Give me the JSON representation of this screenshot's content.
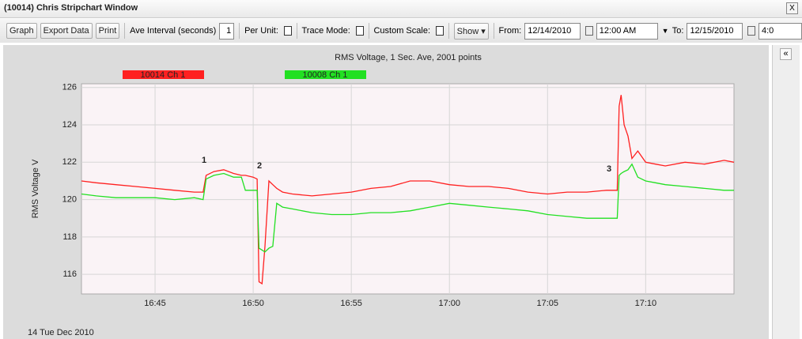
{
  "window": {
    "title": "(10014) Chris Stripchart Window",
    "close": "X"
  },
  "toolbar": {
    "buttons": [
      "Graph",
      "Export Data",
      "Print"
    ],
    "ave_interval_label": "Ave Interval (seconds)",
    "ave_interval_value": "1",
    "per_unit_label": "Per Unit:",
    "trace_mode_label": "Trace Mode:",
    "custom_scale_label": "Custom Scale:",
    "show_button": "Show",
    "from_label": "From:",
    "from_date": "12/14/2010",
    "from_time": "12:00 AM",
    "to_label": "To:",
    "to_date": "12/15/2010",
    "to_time": "4:0"
  },
  "side_panel": {
    "collapse": "«"
  },
  "chart_data": {
    "type": "line",
    "title": "RMS Voltage, 1 Sec. Ave, 2001 points",
    "ylabel": "RMS Voltage V",
    "xlabel": "14 Tue Dec 2010",
    "annotations": [
      "1",
      "2",
      "3"
    ],
    "x": [
      1001.25,
      1002,
      1003,
      1004,
      1005,
      1006,
      1007,
      1007.45,
      1007.6,
      1008,
      1008.5,
      1009,
      1009.4,
      1009.6,
      1010,
      1010.2,
      1010.3,
      1010.45,
      1010.6,
      1010.8,
      1011,
      1011.2,
      1011.5,
      1012,
      1013,
      1014,
      1015,
      1016,
      1017,
      1018,
      1019,
      1020,
      1021,
      1022,
      1023,
      1024,
      1025,
      1026,
      1027,
      1028,
      1028.55,
      1028.65,
      1028.75,
      1028.9,
      1029.1,
      1029.3,
      1029.6,
      1030,
      1030.5,
      1031,
      1032,
      1033,
      1034,
      1034.5
    ],
    "series": [
      {
        "name": "10014 Ch 1",
        "color": "#ff2020",
        "values": [
          121.0,
          120.9,
          120.8,
          120.7,
          120.6,
          120.5,
          120.4,
          120.4,
          121.3,
          121.5,
          121.6,
          121.4,
          121.3,
          121.3,
          121.2,
          121.1,
          115.6,
          115.5,
          117.5,
          121.0,
          120.8,
          120.6,
          120.4,
          120.3,
          120.2,
          120.3,
          120.4,
          120.6,
          120.7,
          121.0,
          121.0,
          120.8,
          120.7,
          120.7,
          120.6,
          120.4,
          120.3,
          120.4,
          120.4,
          120.5,
          120.5,
          125.0,
          125.6,
          124.0,
          123.4,
          122.2,
          122.6,
          122.0,
          121.9,
          121.8,
          122.0,
          121.9,
          122.1,
          122.0
        ]
      },
      {
        "name": "10008 Ch 1",
        "color": "#22e022",
        "values": [
          120.3,
          120.2,
          120.1,
          120.1,
          120.1,
          120.0,
          120.1,
          120.0,
          121.1,
          121.3,
          121.4,
          121.2,
          121.2,
          120.5,
          120.5,
          120.5,
          117.4,
          117.3,
          117.2,
          117.4,
          117.5,
          119.8,
          119.6,
          119.5,
          119.3,
          119.2,
          119.2,
          119.3,
          119.3,
          119.4,
          119.6,
          119.8,
          119.7,
          119.6,
          119.5,
          119.4,
          119.2,
          119.1,
          119.0,
          119.0,
          119.0,
          121.3,
          121.4,
          121.5,
          121.6,
          121.9,
          121.2,
          121.0,
          120.9,
          120.8,
          120.7,
          120.6,
          120.5,
          120.5
        ]
      }
    ],
    "xlim": [
      1001.25,
      1034.5
    ],
    "xticks": [
      {
        "value": 1005,
        "label": "16:45"
      },
      {
        "value": 1010,
        "label": "16:50"
      },
      {
        "value": 1015,
        "label": "16:55"
      },
      {
        "value": 1020,
        "label": "17:00"
      },
      {
        "value": 1025,
        "label": "17:05"
      },
      {
        "value": 1030,
        "label": "17:10"
      }
    ],
    "ylim": [
      114.95,
      126.2
    ],
    "yticks": [
      116,
      118,
      120,
      122,
      124,
      126
    ],
    "grid": true
  }
}
